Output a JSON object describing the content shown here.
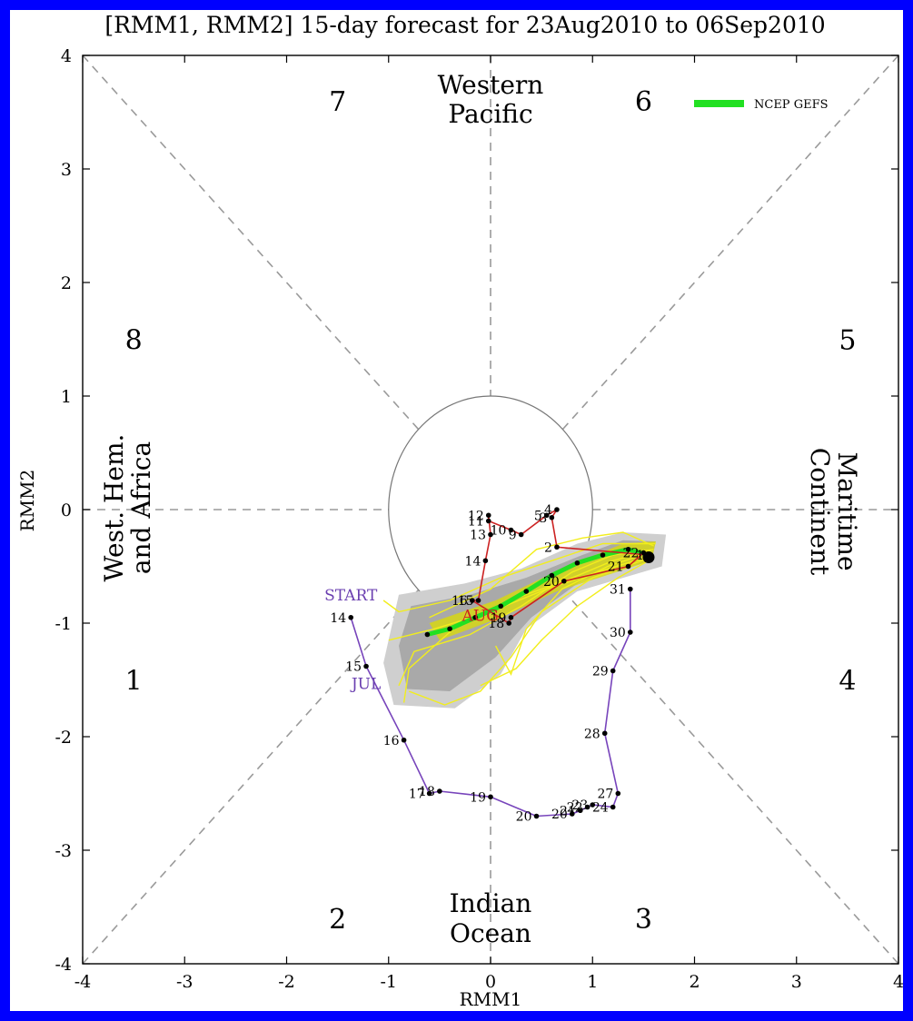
{
  "chart_data": {
    "type": "scatter",
    "title": "[RMM1, RMM2] 15-day forecast for 23Aug2010 to 06Sep2010",
    "xlabel": "RMM1",
    "ylabel": "RMM2",
    "xlim": [
      -4,
      4
    ],
    "ylim": [
      -4,
      4
    ],
    "x_ticks": [
      "-4",
      "-3",
      "-2",
      "-1",
      "0",
      "1",
      "2",
      "3",
      "4"
    ],
    "y_ticks": [
      "4",
      "3",
      "2",
      "1",
      "0",
      "-1",
      "-2",
      "-3",
      "-4"
    ],
    "grid": false,
    "legend_position": "top-right",
    "legend": [
      {
        "name": "NCEP GEFS",
        "color": "#22e022"
      }
    ],
    "phases": [
      {
        "label": "7",
        "x": -1.5,
        "y": 3.6
      },
      {
        "label": "6",
        "x": 1.5,
        "y": 3.6
      },
      {
        "label": "8",
        "x": -3.5,
        "y": 1.5
      },
      {
        "label": "5",
        "x": 3.5,
        "y": 1.5
      },
      {
        "label": "1",
        "x": -3.5,
        "y": -1.5
      },
      {
        "label": "4",
        "x": 3.5,
        "y": -1.5
      },
      {
        "label": "2",
        "x": -1.5,
        "y": -3.6
      },
      {
        "label": "3",
        "x": 1.5,
        "y": -3.6
      }
    ],
    "regions": {
      "top": [
        "Western",
        "Pacific"
      ],
      "bottom": [
        "Indian",
        "Ocean"
      ],
      "left": [
        "West. Hem.",
        "and Africa"
      ],
      "right": [
        "Maritime",
        "Continent"
      ]
    },
    "annotations": [
      {
        "text": "START",
        "x": -1.37,
        "y": -0.8,
        "color": "#6a3fb0"
      },
      {
        "text": "JUL",
        "x": -1.22,
        "y": -1.58,
        "color": "#6a3fb0"
      },
      {
        "text": "AUG",
        "x": -0.1,
        "y": -0.98,
        "color": "#cc2222"
      }
    ],
    "observed_series": [
      {
        "name": "JUL",
        "color": "#7744bb",
        "points": [
          {
            "day": "14",
            "x": -1.37,
            "y": -0.95
          },
          {
            "day": "15",
            "x": -1.22,
            "y": -1.38
          },
          {
            "day": "16",
            "x": -0.85,
            "y": -2.03
          },
          {
            "day": "17",
            "x": -0.6,
            "y": -2.5
          },
          {
            "day": "18",
            "x": -0.5,
            "y": -2.48
          },
          {
            "day": "19",
            "x": 0.0,
            "y": -2.53
          },
          {
            "day": "20",
            "x": 0.45,
            "y": -2.7
          },
          {
            "day": "20",
            "x": 0.8,
            "y": -2.68
          },
          {
            "day": "21",
            "x": 0.88,
            "y": -2.65
          },
          {
            "day": "22",
            "x": 0.95,
            "y": -2.62
          },
          {
            "day": "23",
            "x": 1.0,
            "y": -2.6
          },
          {
            "day": "24",
            "x": 1.2,
            "y": -2.62
          },
          {
            "day": "27",
            "x": 1.25,
            "y": -2.5
          },
          {
            "day": "28",
            "x": 1.12,
            "y": -1.97
          },
          {
            "day": "29",
            "x": 1.2,
            "y": -1.42
          },
          {
            "day": "30",
            "x": 1.37,
            "y": -1.08
          },
          {
            "day": "31",
            "x": 1.37,
            "y": -0.7
          }
        ]
      },
      {
        "name": "AUG",
        "color": "#cc2222",
        "points": [
          {
            "day": "1",
            "x": 1.55,
            "y": -0.4
          },
          {
            "day": "2",
            "x": 0.65,
            "y": -0.33
          },
          {
            "day": "3",
            "x": 0.6,
            "y": -0.07
          },
          {
            "day": "4",
            "x": 0.65,
            "y": 0.0
          },
          {
            "day": "5",
            "x": 0.55,
            "y": -0.05
          },
          {
            "day": "9",
            "x": 0.3,
            "y": -0.22
          },
          {
            "day": "10",
            "x": 0.2,
            "y": -0.18
          },
          {
            "day": "11",
            "x": -0.02,
            "y": -0.1
          },
          {
            "day": "12",
            "x": -0.02,
            "y": -0.05
          },
          {
            "day": "13",
            "x": 0.0,
            "y": -0.22
          },
          {
            "day": "14",
            "x": -0.05,
            "y": -0.45
          },
          {
            "day": "15",
            "x": -0.12,
            "y": -0.8
          },
          {
            "day": "16",
            "x": -0.18,
            "y": -0.8
          },
          {
            "day": "18",
            "x": 0.18,
            "y": -1.0
          },
          {
            "day": "19",
            "x": 0.2,
            "y": -0.95
          },
          {
            "day": "20",
            "x": 0.72,
            "y": -0.63
          },
          {
            "day": "21",
            "x": 1.35,
            "y": -0.5
          },
          {
            "day": "22",
            "x": 1.5,
            "y": -0.38
          }
        ]
      }
    ],
    "ensemble_mean_series": {
      "name": "NCEP GEFS",
      "color": "#22e022",
      "points": [
        {
          "x": 1.55,
          "y": -0.4
        },
        {
          "x": 1.35,
          "y": -0.35
        },
        {
          "x": 1.1,
          "y": -0.4
        },
        {
          "x": 0.85,
          "y": -0.47
        },
        {
          "x": 0.6,
          "y": -0.58
        },
        {
          "x": 0.35,
          "y": -0.72
        },
        {
          "x": 0.1,
          "y": -0.85
        },
        {
          "x": -0.15,
          "y": -0.95
        },
        {
          "x": -0.4,
          "y": -1.05
        },
        {
          "x": -0.62,
          "y": -1.1
        }
      ]
    },
    "forecast_start_point": {
      "x": 1.55,
      "y": -0.42
    }
  }
}
